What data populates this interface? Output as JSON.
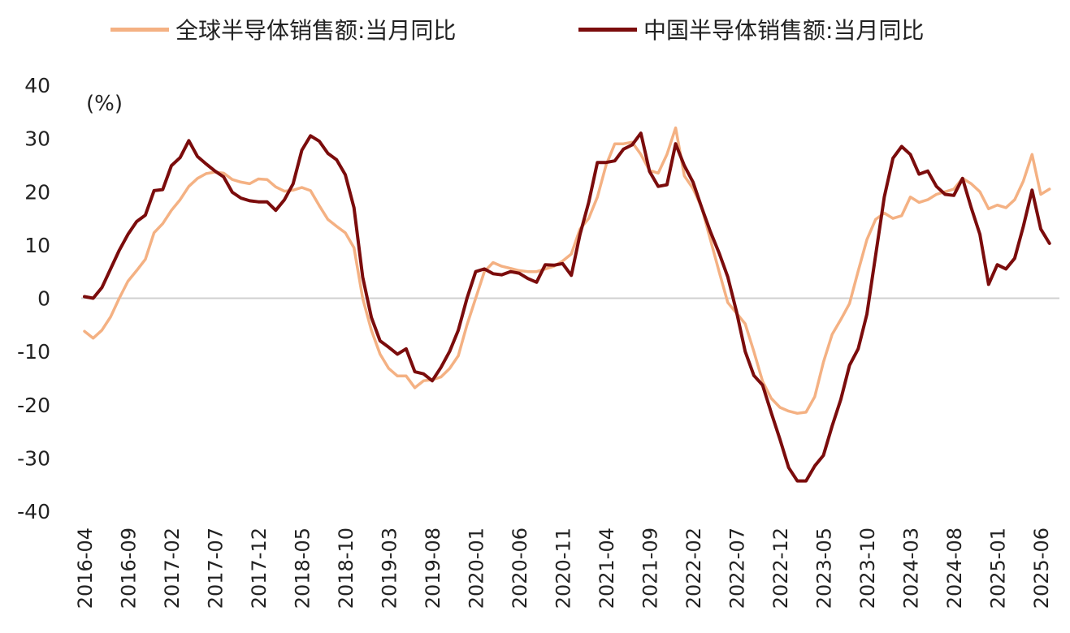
{
  "chart_data": {
    "type": "line",
    "ylabel": "(%)",
    "ylim": [
      -40,
      40
    ],
    "yticks": [
      40,
      30,
      20,
      10,
      0,
      -10,
      -20,
      -30,
      -40
    ],
    "xticks": [
      "2016-04",
      "2016-09",
      "2017-02",
      "2017-07",
      "2017-12",
      "2018-05",
      "2018-10",
      "2019-03",
      "2019-08",
      "2020-01",
      "2020-06",
      "2020-11",
      "2021-04",
      "2021-09",
      "2022-02",
      "2022-07",
      "2022-12",
      "2023-05",
      "2023-10",
      "2024-03",
      "2024-08",
      "2025-01",
      "2025-06"
    ],
    "x_start": "2016-04",
    "grid": false,
    "legend_position": "top",
    "series": [
      {
        "name": "全球半导体销售额:当月同比",
        "color": "#f4b183",
        "values": [
          -6.2,
          -7.5,
          -6,
          -3.5,
          0,
          3.2,
          5.2,
          7.3,
          12.3,
          14,
          16.5,
          18.5,
          21,
          22.5,
          23.4,
          23.7,
          23.5,
          22.3,
          21.8,
          21.5,
          22.4,
          22.3,
          20.9,
          20.1,
          20.3,
          20.8,
          20.2,
          17.4,
          14.8,
          13.5,
          12.3,
          9.5,
          0,
          -6,
          -10.5,
          -13.2,
          -14.6,
          -14.6,
          -16.8,
          -15.5,
          -15.3,
          -14.8,
          -13.2,
          -10.8,
          -5,
          0,
          5,
          6.7,
          6,
          5.6,
          5.2,
          5,
          5,
          5.5,
          6,
          7,
          8.3,
          13,
          15,
          19,
          25,
          29,
          29,
          29.3,
          27,
          24,
          23.5,
          27,
          32,
          23,
          20.6,
          17,
          11,
          5,
          -0.8,
          -2.8,
          -4.8,
          -10,
          -15.6,
          -18.8,
          -20.5,
          -21.2,
          -21.6,
          -21.4,
          -18.5,
          -12,
          -6.8,
          -4,
          -1,
          5.1,
          11,
          14.8,
          16,
          15,
          15.5,
          19,
          18,
          18.5,
          19.5,
          20,
          20.5,
          22.5,
          21.5,
          20,
          16.8,
          17.5,
          17,
          18.5,
          22,
          27,
          19.5,
          20.5
        ]
      },
      {
        "name": "中国半导体销售额:当月同比",
        "color": "#7b0c0c",
        "values": [
          0.3,
          0,
          2,
          5.5,
          9,
          12,
          14.4,
          15.6,
          20.2,
          20.4,
          24.9,
          26.4,
          29.6,
          26.6,
          25.2,
          23.9,
          22.8,
          19.9,
          18.8,
          18.3,
          18.1,
          18.1,
          16.5,
          18.5,
          21.5,
          27.8,
          30.5,
          29.5,
          27.2,
          26,
          23.2,
          17,
          4,
          -3.6,
          -8,
          -9.2,
          -10.5,
          -9.5,
          -13.8,
          -14.2,
          -15.5,
          -13,
          -10,
          -6,
          0,
          5,
          5.5,
          4.6,
          4.4,
          5,
          4.7,
          3.7,
          3,
          6.3,
          6.2,
          6.5,
          4.3,
          12,
          18,
          25.5,
          25.5,
          25.8,
          28,
          28.8,
          31,
          23.8,
          21,
          21.3,
          29,
          24.9,
          21.8,
          17,
          12.5,
          8.5,
          4,
          -2.5,
          -10,
          -14.5,
          -16.3,
          -21.5,
          -26.5,
          -31.8,
          -34.3,
          -34.3,
          -31.5,
          -29.5,
          -24,
          -19,
          -12.6,
          -9.5,
          -3,
          8,
          19,
          26.3,
          28.5,
          27,
          23.3,
          23.9,
          21,
          19.5,
          19.3,
          22.5,
          17,
          12,
          2.6,
          6.3,
          5.5,
          7.5,
          13.5,
          20.3,
          13,
          10.3
        ]
      }
    ]
  }
}
